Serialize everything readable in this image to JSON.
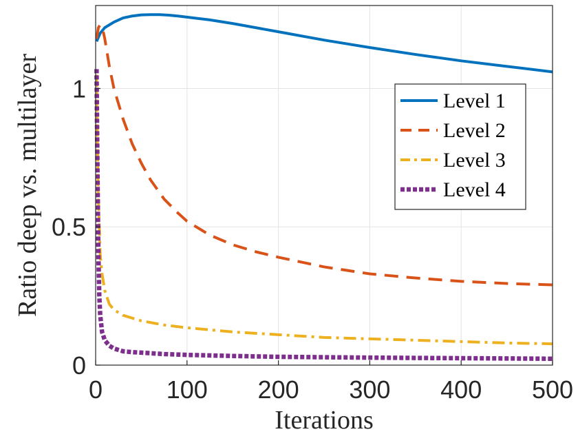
{
  "chart_data": {
    "type": "line",
    "title": "",
    "xlabel": "Iterations",
    "ylabel": "Ratio deep vs. multilayer",
    "xlim": [
      0,
      500
    ],
    "ylim": [
      0,
      1.3
    ],
    "xticks": [
      0,
      100,
      200,
      300,
      400,
      500
    ],
    "xtick_labels": [
      "0",
      "100",
      "200",
      "300",
      "400",
      "500"
    ],
    "yticks": [
      0,
      0.5,
      1
    ],
    "ytick_labels": [
      "0",
      "0.5",
      "1"
    ],
    "grid": true,
    "legend_position": "top-right",
    "series": [
      {
        "name": "Level 1",
        "color": "#0072BD",
        "style": "solid",
        "x": [
          1,
          5,
          10,
          20,
          30,
          40,
          50,
          60,
          70,
          80,
          90,
          100,
          125,
          150,
          175,
          200,
          250,
          300,
          350,
          400,
          450,
          500
        ],
        "y": [
          1.17,
          1.2,
          1.22,
          1.24,
          1.255,
          1.262,
          1.266,
          1.267,
          1.267,
          1.265,
          1.262,
          1.258,
          1.248,
          1.235,
          1.22,
          1.205,
          1.175,
          1.148,
          1.123,
          1.1,
          1.08,
          1.06
        ]
      },
      {
        "name": "Level 2",
        "color": "#D95319",
        "style": "dashed",
        "x": [
          1,
          3,
          5,
          8,
          10,
          15,
          20,
          30,
          40,
          50,
          60,
          75,
          90,
          100,
          125,
          150,
          175,
          200,
          250,
          300,
          350,
          400,
          450,
          500
        ],
        "y": [
          1.18,
          1.22,
          1.23,
          1.21,
          1.18,
          1.08,
          1.0,
          0.89,
          0.8,
          0.73,
          0.67,
          0.6,
          0.55,
          0.52,
          0.47,
          0.435,
          0.41,
          0.39,
          0.355,
          0.33,
          0.315,
          0.303,
          0.295,
          0.29
        ]
      },
      {
        "name": "Level 3",
        "color": "#EDB120",
        "style": "dashdot",
        "x": [
          1,
          2,
          3,
          5,
          7,
          10,
          15,
          20,
          30,
          40,
          50,
          75,
          100,
          150,
          200,
          250,
          300,
          350,
          400,
          450,
          500
        ],
        "y": [
          1.05,
          0.8,
          0.6,
          0.4,
          0.33,
          0.27,
          0.22,
          0.2,
          0.18,
          0.17,
          0.16,
          0.145,
          0.135,
          0.12,
          0.11,
          0.1,
          0.095,
          0.09,
          0.085,
          0.08,
          0.077
        ]
      },
      {
        "name": "Level 4",
        "color": "#7E2F8E",
        "style": "dotted",
        "x": [
          1,
          2,
          3,
          4,
          5,
          7,
          10,
          15,
          20,
          30,
          40,
          50,
          75,
          100,
          150,
          200,
          300,
          400,
          500
        ],
        "y": [
          1.07,
          0.7,
          0.4,
          0.25,
          0.18,
          0.12,
          0.09,
          0.07,
          0.06,
          0.05,
          0.047,
          0.045,
          0.04,
          0.037,
          0.033,
          0.03,
          0.027,
          0.025,
          0.023
        ]
      }
    ]
  }
}
